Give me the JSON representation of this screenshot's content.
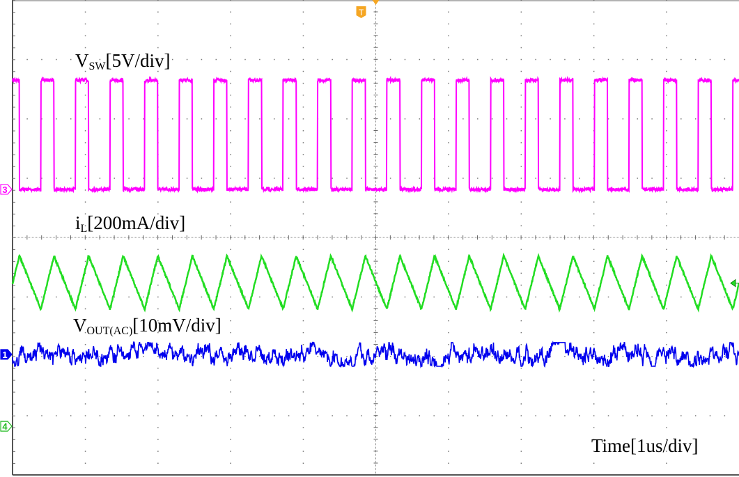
{
  "chart_data": {
    "type": "line",
    "title": "",
    "x_unit": "us",
    "xlim": [
      -5,
      5
    ],
    "x_divisions": 10,
    "y_divisions": 8,
    "grid": true,
    "time_label": "Time[1us/div]",
    "trigger": {
      "label": "T",
      "time_us": 0,
      "color": "#f5a623"
    },
    "series": [
      {
        "name": "VSW",
        "label_main": "V",
        "label_sub": "SW",
        "label_scale": "[5V/div]",
        "channel": "3",
        "color": "#ff00ff",
        "kind": "square",
        "low_V": 0,
        "high_V": 9.2,
        "frequency_MHz": 2.1,
        "duty": 0.38,
        "first_rising_edge_us": -4.61,
        "ref_div": 0.81
      },
      {
        "name": "iL",
        "label_main": "i",
        "label_sub": "L",
        "label_scale": "[200mA/div]",
        "channel": "2",
        "color": "#22dd22",
        "kind": "triangle",
        "ripple_mA": [
          -88,
          92
        ],
        "frequency_MHz": 2.1,
        "duty": 0.38,
        "ref_div": -0.77
      },
      {
        "name": "VOUT(AC)",
        "label_main": "V",
        "label_sub": "OUT(AC)",
        "label_scale": "[10mV/div]",
        "channel": "1",
        "color": "#0000ee",
        "kind": "noise",
        "noise_mV_pp": 4,
        "ref_div": -1.97
      }
    ],
    "extra_channel_markers": [
      {
        "channel": "4",
        "color": "#22bb22",
        "ref_div": -3.18
      }
    ]
  }
}
